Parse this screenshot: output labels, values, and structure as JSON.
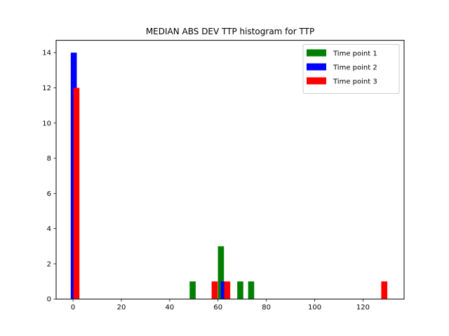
{
  "chart_data": {
    "type": "bar",
    "title": "MEDIAN ABS DEV TTP histogram for TTP",
    "xlabel": "",
    "ylabel": "",
    "xlim": [
      -7,
      137
    ],
    "ylim": [
      0,
      14.7
    ],
    "xticks": [
      0,
      20,
      40,
      60,
      80,
      100,
      120
    ],
    "yticks": [
      0,
      2,
      4,
      6,
      8,
      10,
      12,
      14
    ],
    "legend_position": "top-right",
    "grid": false,
    "bin_width": 2.5,
    "series": [
      {
        "name": "Time point 1",
        "color": "#008000",
        "bins": [
          {
            "x": 49.5,
            "count": 1
          },
          {
            "x": 61.2,
            "count": 3
          },
          {
            "x": 69.2,
            "count": 1
          },
          {
            "x": 73.7,
            "count": 1
          }
        ]
      },
      {
        "name": "Time point 2",
        "color": "#0000ff",
        "bins": [
          {
            "x": 0.3,
            "count": 14
          },
          {
            "x": 62.4,
            "count": 1
          }
        ]
      },
      {
        "name": "Time point 3",
        "color": "#ff0000",
        "bins": [
          {
            "x": 1.4,
            "count": 12
          },
          {
            "x": 58.6,
            "count": 1
          },
          {
            "x": 63.8,
            "count": 1
          },
          {
            "x": 128.8,
            "count": 1
          }
        ]
      }
    ]
  }
}
